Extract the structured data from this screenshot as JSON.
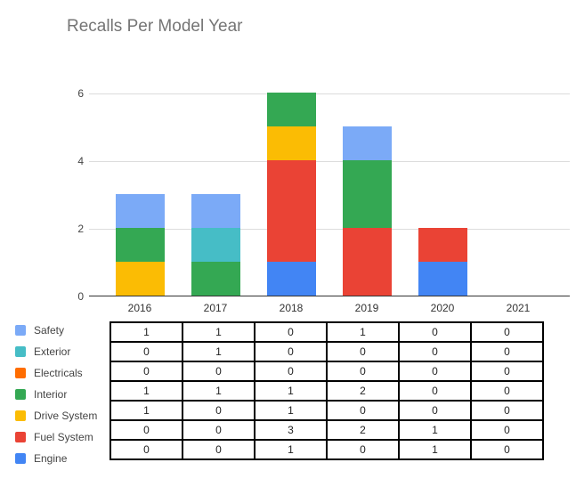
{
  "chart_data": {
    "type": "bar",
    "stacked": true,
    "title": "Recalls Per Model Year",
    "xlabel": "",
    "ylabel": "",
    "ylim": [
      0,
      6
    ],
    "yticks": [
      0,
      2,
      4,
      6
    ],
    "grid": true,
    "legend_position": "left, aligned with data table rows",
    "categories": [
      "2016",
      "2017",
      "2018",
      "2019",
      "2020",
      "2021"
    ],
    "series": [
      {
        "name": "Safety",
        "color": "#7baaf7",
        "values": [
          1,
          1,
          0,
          1,
          0,
          0
        ]
      },
      {
        "name": "Exterior",
        "color": "#46bdc6",
        "values": [
          0,
          1,
          0,
          0,
          0,
          0
        ]
      },
      {
        "name": "Electricals",
        "color": "#ff6d01",
        "values": [
          0,
          0,
          0,
          0,
          0,
          0
        ]
      },
      {
        "name": "Interior",
        "color": "#34a853",
        "values": [
          1,
          1,
          1,
          2,
          0,
          0
        ]
      },
      {
        "name": "Drive System",
        "color": "#fbbc04",
        "values": [
          1,
          0,
          1,
          0,
          0,
          0
        ]
      },
      {
        "name": "Fuel System",
        "color": "#ea4335",
        "values": [
          0,
          0,
          3,
          2,
          1,
          0
        ]
      },
      {
        "name": "Engine",
        "color": "#4285f4",
        "values": [
          0,
          0,
          1,
          0,
          1,
          0
        ]
      }
    ]
  },
  "ui": {
    "title": "Recalls Per Model Year",
    "yticks": [
      "0",
      "2",
      "4",
      "6"
    ],
    "xticks": [
      "2016",
      "2017",
      "2018",
      "2019",
      "2020",
      "2021"
    ],
    "legend": [
      "Safety",
      "Exterior",
      "Electricals",
      "Interior",
      "Drive System",
      "Fuel System",
      "Engine"
    ],
    "table": [
      [
        "1",
        "1",
        "0",
        "1",
        "0",
        "0"
      ],
      [
        "0",
        "1",
        "0",
        "0",
        "0",
        "0"
      ],
      [
        "0",
        "0",
        "0",
        "0",
        "0",
        "0"
      ],
      [
        "1",
        "1",
        "1",
        "2",
        "0",
        "0"
      ],
      [
        "1",
        "0",
        "1",
        "0",
        "0",
        "0"
      ],
      [
        "0",
        "0",
        "3",
        "2",
        "1",
        "0"
      ],
      [
        "0",
        "0",
        "1",
        "0",
        "1",
        "0"
      ]
    ]
  }
}
